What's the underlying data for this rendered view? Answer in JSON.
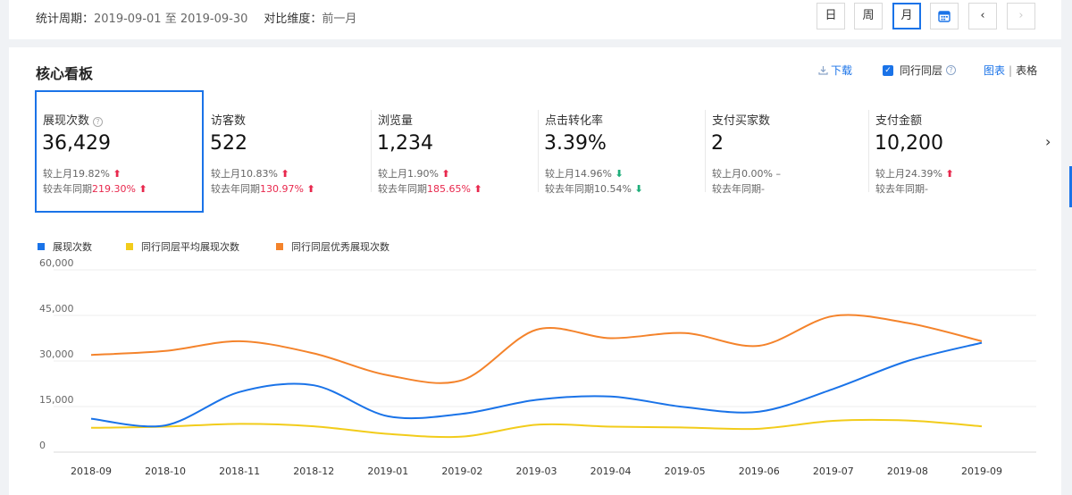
{
  "header": {
    "period_label": "统计周期：",
    "period_value": "2019-09-01 至 2019-09-30",
    "compare_label": "对比维度：",
    "compare_value": "前一月",
    "btn_day": "日",
    "btn_week": "周",
    "btn_month": "月",
    "btn_prev": "‹",
    "btn_next": "›"
  },
  "panel": {
    "title": "核心看板",
    "download": "下载",
    "peer_label": "同行同层",
    "help": "?",
    "view_chart": "图表",
    "view_sep": "|",
    "view_table": "表格",
    "kpi_next": "›"
  },
  "kpis": [
    {
      "name": "展现次数",
      "value": "36,429",
      "mom_label": "较上月",
      "mom": "19.82%",
      "mom_dir": "up",
      "mom_arrow": "⬆",
      "yoy_label": "较去年同期",
      "yoy": "219.30%",
      "yoy_dir": "up",
      "yoy_arrow": "⬆"
    },
    {
      "name": "访客数",
      "value": "522",
      "mom_label": "较上月",
      "mom": "10.83%",
      "mom_dir": "up",
      "mom_arrow": "⬆",
      "yoy_label": "较去年同期",
      "yoy": "130.97%",
      "yoy_dir": "up",
      "yoy_arrow": "⬆"
    },
    {
      "name": "浏览量",
      "value": "1,234",
      "mom_label": "较上月",
      "mom": "1.90%",
      "mom_dir": "up",
      "mom_arrow": "⬆",
      "yoy_label": "较去年同期",
      "yoy": "185.65%",
      "yoy_dir": "up",
      "yoy_arrow": "⬆"
    },
    {
      "name": "点击转化率",
      "value": "3.39%",
      "mom_label": "较上月",
      "mom": "14.96%",
      "mom_dir": "down",
      "mom_arrow": "⬇",
      "yoy_label": "较去年同期",
      "yoy": "10.54%",
      "yoy_dir": "down",
      "yoy_arrow": "⬇"
    },
    {
      "name": "支付买家数",
      "value": "2",
      "mom_label": "较上月",
      "mom": "0.00%",
      "mom_dir": "flat",
      "mom_arrow": "–",
      "yoy_label": "较去年同期",
      "yoy": "-",
      "yoy_dir": "none",
      "yoy_arrow": ""
    },
    {
      "name": "支付金额",
      "value": "10,200",
      "mom_label": "较上月",
      "mom": "24.39%",
      "mom_dir": "up",
      "mom_arrow": "⬆",
      "yoy_label": "较去年同期",
      "yoy": "-",
      "yoy_dir": "none",
      "yoy_arrow": ""
    }
  ],
  "colors": {
    "accent": "#1a73e8",
    "up": "#e8284d",
    "down": "#1fae7a",
    "series_blue": "#1a73e8",
    "series_yellow": "#f2cc1b",
    "series_orange": "#f4832b"
  },
  "chart_data": {
    "type": "line",
    "categories": [
      "2018-09",
      "2018-10",
      "2018-11",
      "2018-12",
      "2019-01",
      "2019-02",
      "2019-03",
      "2019-04",
      "2019-05",
      "2019-06",
      "2019-07",
      "2019-08",
      "2019-09"
    ],
    "series": [
      {
        "name": "展现次数",
        "color": "#1a73e8",
        "values": [
          11000,
          8800,
          19800,
          22000,
          11800,
          12600,
          17200,
          18300,
          14800,
          13300,
          20800,
          30000,
          36000
        ]
      },
      {
        "name": "同行同层平均展现次数",
        "color": "#f2cc1b",
        "values": [
          8000,
          8400,
          9300,
          8500,
          6000,
          5100,
          9000,
          8400,
          8100,
          7700,
          10300,
          10400,
          8500
        ]
      },
      {
        "name": "同行同层优秀展现次数",
        "color": "#f4832b",
        "values": [
          32000,
          33300,
          36500,
          32500,
          25300,
          23700,
          40300,
          37500,
          39200,
          35000,
          44800,
          42500,
          36500
        ]
      }
    ],
    "y_ticks": [
      "0",
      "15,000",
      "30,000",
      "45,000",
      "60,000"
    ],
    "ylim": [
      0,
      60000
    ],
    "grid": true,
    "legend": "top-left"
  }
}
